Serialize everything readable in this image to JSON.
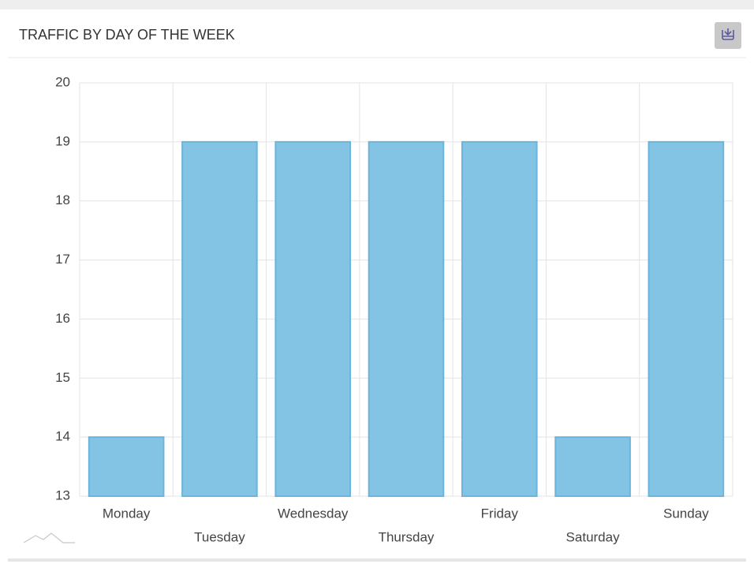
{
  "chart_data": {
    "type": "bar",
    "title": "TRAFFIC BY DAY OF THE WEEK",
    "categories": [
      "Monday",
      "Tuesday",
      "Wednesday",
      "Thursday",
      "Friday",
      "Saturday",
      "Sunday"
    ],
    "values": [
      14,
      19,
      19,
      19,
      19,
      14,
      19
    ],
    "color": "#83c3e3",
    "ylim": [
      13,
      20
    ],
    "yticks": [
      13,
      14,
      15,
      16,
      17,
      18,
      19,
      20
    ],
    "grid": true
  }
}
